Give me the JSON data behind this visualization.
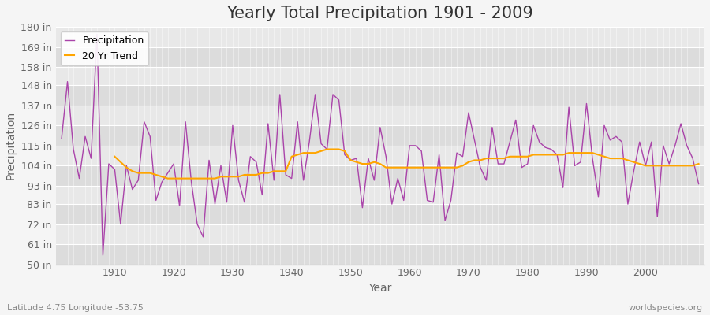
{
  "title": "Yearly Total Precipitation 1901 - 2009",
  "xlabel": "Year",
  "ylabel": "Precipitation",
  "subtitle_left": "Latitude 4.75 Longitude -53.75",
  "subtitle_right": "worldspecies.org",
  "ylim": [
    50,
    180
  ],
  "yticks": [
    50,
    61,
    72,
    83,
    93,
    104,
    115,
    126,
    137,
    148,
    158,
    169,
    180
  ],
  "ytick_labels": [
    "50 in",
    "61 in",
    "72 in",
    "83 in",
    "93 in",
    "104 in",
    "115 in",
    "126 in",
    "137 in",
    "148 in",
    "158 in",
    "169 in",
    "180 in"
  ],
  "years": [
    1901,
    1902,
    1903,
    1904,
    1905,
    1906,
    1907,
    1908,
    1909,
    1910,
    1911,
    1912,
    1913,
    1914,
    1915,
    1916,
    1917,
    1918,
    1919,
    1920,
    1921,
    1922,
    1923,
    1924,
    1925,
    1926,
    1927,
    1928,
    1929,
    1930,
    1931,
    1932,
    1933,
    1934,
    1935,
    1936,
    1937,
    1938,
    1939,
    1940,
    1941,
    1942,
    1943,
    1944,
    1945,
    1946,
    1947,
    1948,
    1949,
    1950,
    1951,
    1952,
    1953,
    1954,
    1955,
    1956,
    1957,
    1958,
    1959,
    1960,
    1961,
    1962,
    1963,
    1964,
    1965,
    1966,
    1967,
    1968,
    1969,
    1970,
    1971,
    1972,
    1973,
    1974,
    1975,
    1976,
    1977,
    1978,
    1979,
    1980,
    1981,
    1982,
    1983,
    1984,
    1985,
    1986,
    1987,
    1988,
    1989,
    1990,
    1991,
    1992,
    1993,
    1994,
    1995,
    1996,
    1997,
    1998,
    1999,
    2000,
    2001,
    2002,
    2003,
    2004,
    2005,
    2006,
    2007,
    2008,
    2009
  ],
  "precip": [
    119,
    150,
    113,
    97,
    120,
    108,
    176,
    55,
    105,
    102,
    72,
    104,
    91,
    96,
    128,
    120,
    85,
    95,
    100,
    105,
    82,
    128,
    95,
    72,
    65,
    107,
    83,
    104,
    84,
    126,
    96,
    84,
    109,
    106,
    88,
    127,
    96,
    143,
    99,
    97,
    128,
    96,
    117,
    143,
    116,
    113,
    143,
    140,
    110,
    107,
    108,
    81,
    108,
    96,
    125,
    109,
    83,
    97,
    85,
    115,
    115,
    112,
    85,
    84,
    110,
    74,
    85,
    111,
    109,
    133,
    118,
    103,
    96,
    125,
    105,
    105,
    117,
    129,
    103,
    105,
    126,
    117,
    114,
    113,
    110,
    92,
    136,
    104,
    106,
    138,
    108,
    87,
    126,
    118,
    120,
    117,
    83,
    101,
    117,
    104,
    117,
    76,
    115,
    105,
    115,
    127,
    115,
    108,
    94
  ],
  "trend_years": [
    1910,
    1911,
    1912,
    1913,
    1914,
    1915,
    1916,
    1917,
    1918,
    1919,
    1920,
    1921,
    1922,
    1923,
    1924,
    1925,
    1926,
    1927,
    1928,
    1929,
    1930,
    1931,
    1932,
    1933,
    1934,
    1935,
    1936,
    1937,
    1938,
    1939,
    1940,
    1941,
    1942,
    1943,
    1944,
    1945,
    1946,
    1947,
    1948,
    1949,
    1950,
    1951,
    1952,
    1953,
    1954,
    1955,
    1956,
    1957,
    1958,
    1959,
    1960,
    1961,
    1962,
    1963,
    1964,
    1965,
    1966,
    1967,
    1968,
    1969,
    1970,
    1971,
    1972,
    1973,
    1974,
    1975,
    1976,
    1977,
    1978,
    1979,
    1980,
    1981,
    1982,
    1983,
    1984,
    1985,
    1986,
    1987,
    1988,
    1989,
    1990,
    1991,
    1992,
    1993,
    1994,
    1995,
    1996,
    1997,
    1998,
    1999,
    2000,
    2001,
    2002,
    2003,
    2004,
    2005,
    2006,
    2007,
    2008,
    2009
  ],
  "trend": [
    109,
    106,
    103,
    101,
    100,
    100,
    100,
    99,
    98,
    97,
    97,
    97,
    97,
    97,
    97,
    97,
    97,
    97,
    98,
    98,
    98,
    98,
    99,
    99,
    99,
    100,
    100,
    101,
    101,
    101,
    109,
    110,
    111,
    111,
    111,
    112,
    113,
    113,
    113,
    112,
    107,
    106,
    105,
    105,
    106,
    105,
    103,
    103,
    103,
    103,
    103,
    103,
    103,
    103,
    103,
    103,
    103,
    103,
    103,
    104,
    106,
    107,
    107,
    108,
    108,
    108,
    108,
    109,
    109,
    109,
    109,
    110,
    110,
    110,
    110,
    110,
    110,
    111,
    111,
    111,
    111,
    111,
    110,
    109,
    108,
    108,
    108,
    107,
    106,
    105,
    104,
    104,
    104,
    104,
    104,
    104,
    104,
    104,
    104,
    105
  ],
  "precip_color": "#AA44AA",
  "trend_color": "#FFA500",
  "band_colors": [
    "#DCDCDC",
    "#E8E8E8"
  ],
  "fig_bg_color": "#F5F5F5",
  "grid_color": "#FFFFFF",
  "title_fontsize": 15,
  "label_fontsize": 10,
  "tick_fontsize": 9,
  "legend_fontsize": 9,
  "xlim": [
    1900,
    2010
  ]
}
